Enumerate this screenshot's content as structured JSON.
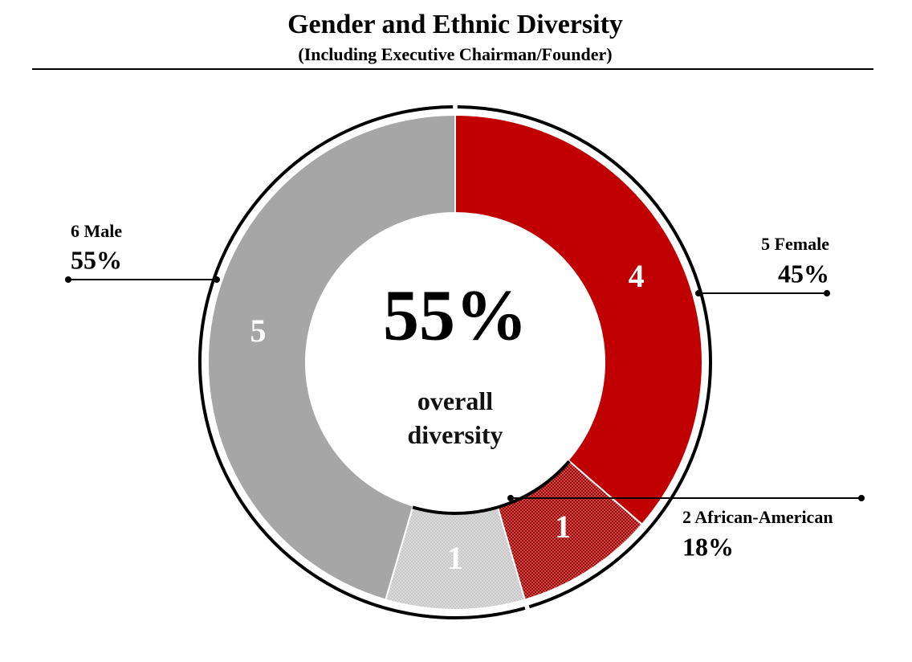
{
  "chart_data": {
    "type": "donut",
    "title": "Gender and Ethnic Diversity",
    "subtitle": "(Including Executive Chairman/Founder)",
    "values": [
      4,
      1,
      1,
      5
    ],
    "colors": [
      "#c00000",
      "#a50000",
      "#c8c8c8",
      "#a6a6a6"
    ],
    "dotted": [
      false,
      true,
      true,
      false
    ],
    "center_value": "55%",
    "center_label": "overall diversity",
    "annotations": [
      {
        "label": "6 Male",
        "value": "55%"
      },
      {
        "label": "5 Female",
        "value": "45%"
      },
      {
        "label": "2 African-American",
        "value": "18%"
      }
    ]
  }
}
